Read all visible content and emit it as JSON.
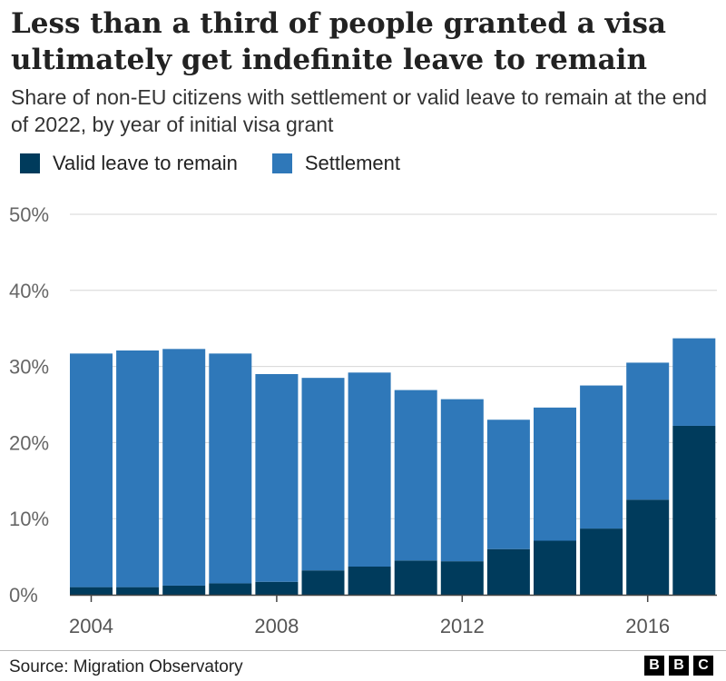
{
  "header": {
    "title": "Less than a third of people granted a visa ultimately get indefinite leave to remain",
    "subtitle": "Share of non-EU citizens with settlement or valid leave to remain at the end of 2022, by year of initial visa grant"
  },
  "legend": [
    {
      "label": "Valid leave to remain",
      "color": "#003b5c"
    },
    {
      "label": "Settlement",
      "color": "#2f78b9"
    }
  ],
  "chart_data": {
    "type": "bar",
    "stacked": true,
    "categories": [
      "2004",
      "2005",
      "2006",
      "2007",
      "2008",
      "2009",
      "2010",
      "2011",
      "2012",
      "2013",
      "2014",
      "2015",
      "2016",
      "2017"
    ],
    "series": [
      {
        "name": "Valid leave to remain",
        "color": "#003b5c",
        "values": [
          1.0,
          1.0,
          1.2,
          1.5,
          1.7,
          3.2,
          3.7,
          4.5,
          4.4,
          6.0,
          7.1,
          8.7,
          12.5,
          22.2
        ]
      },
      {
        "name": "Settlement",
        "color": "#2f78b9",
        "values": [
          30.7,
          31.1,
          31.1,
          30.2,
          27.3,
          25.3,
          25.5,
          22.4,
          21.3,
          17.0,
          17.5,
          18.8,
          18.0,
          11.5
        ]
      }
    ],
    "ylim": [
      0,
      50
    ],
    "yticks": [
      0,
      10,
      20,
      30,
      40,
      50
    ],
    "ytick_labels": [
      "0%",
      "10%",
      "20%",
      "30%",
      "40%",
      "50%"
    ],
    "xtick_labels": [
      "2004",
      "2008",
      "2012",
      "2016"
    ],
    "xtick_categories": [
      "2004",
      "2008",
      "2012",
      "2016"
    ],
    "grid": true,
    "legend_position": "top-left"
  },
  "footer": {
    "source": "Source: Migration Observatory",
    "brand_letters": [
      "B",
      "B",
      "C"
    ]
  }
}
